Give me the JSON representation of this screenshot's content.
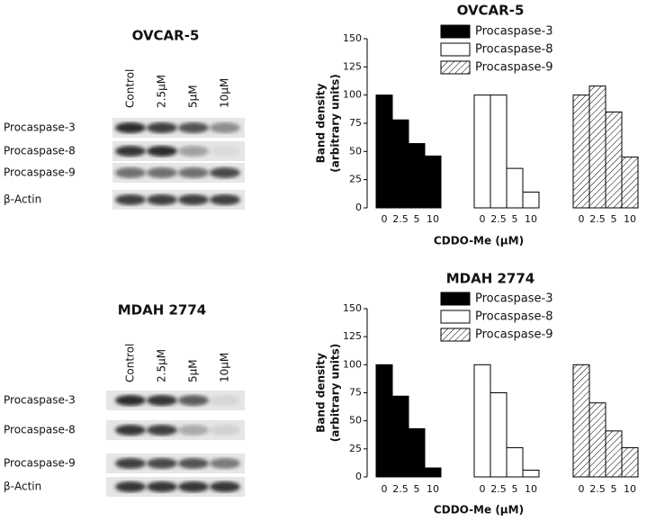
{
  "blots": [
    {
      "title": "OVCAR-5",
      "lanes": [
        "Control",
        "2.5μM",
        "5μM",
        "10μM"
      ],
      "rows": [
        "Procaspase-3",
        "Procaspase-8",
        "Procaspase-9",
        "β-Actin"
      ]
    },
    {
      "title": "MDAH 2774",
      "lanes": [
        "Control",
        "2.5μM",
        "5μM",
        "10μM"
      ],
      "rows": [
        "Procaspase-3",
        "Procaspase-8",
        "Procaspase-9",
        "β-Actin"
      ]
    }
  ],
  "chart_data": [
    {
      "type": "bar",
      "title": "OVCAR-5",
      "ylabel": [
        "Band density",
        "(arbitrary units)"
      ],
      "xlabel": "CDDO-Me (μM)",
      "categories": [
        "0",
        "2.5",
        "5",
        "10"
      ],
      "ylim": [
        0,
        150
      ],
      "yticks": [
        0,
        25,
        50,
        75,
        100,
        125,
        150
      ],
      "series": [
        {
          "name": "Procaspase-3",
          "color": "#000000",
          "values": [
            100,
            78,
            57,
            46
          ]
        },
        {
          "name": "Procaspase-8",
          "color": "#ffffff",
          "values": [
            100,
            100,
            35,
            14
          ]
        },
        {
          "name": "Procaspase-9",
          "color": "#ffffff",
          "hatch": true,
          "values": [
            100,
            108,
            85,
            45
          ]
        }
      ]
    },
    {
      "type": "bar",
      "title": "MDAH 2774",
      "ylabel": [
        "Band density",
        "(arbitrary units)"
      ],
      "xlabel": "CDDO-Me (μM)",
      "categories": [
        "0",
        "2.5",
        "5",
        "10"
      ],
      "ylim": [
        0,
        150
      ],
      "yticks": [
        0,
        25,
        50,
        75,
        100,
        125,
        150
      ],
      "series": [
        {
          "name": "Procaspase-3",
          "color": "#000000",
          "values": [
            100,
            72,
            43,
            8
          ]
        },
        {
          "name": "Procaspase-8",
          "color": "#ffffff",
          "values": [
            100,
            75,
            26,
            6
          ]
        },
        {
          "name": "Procaspase-9",
          "color": "#ffffff",
          "hatch": true,
          "values": [
            100,
            66,
            41,
            26
          ]
        }
      ]
    }
  ]
}
